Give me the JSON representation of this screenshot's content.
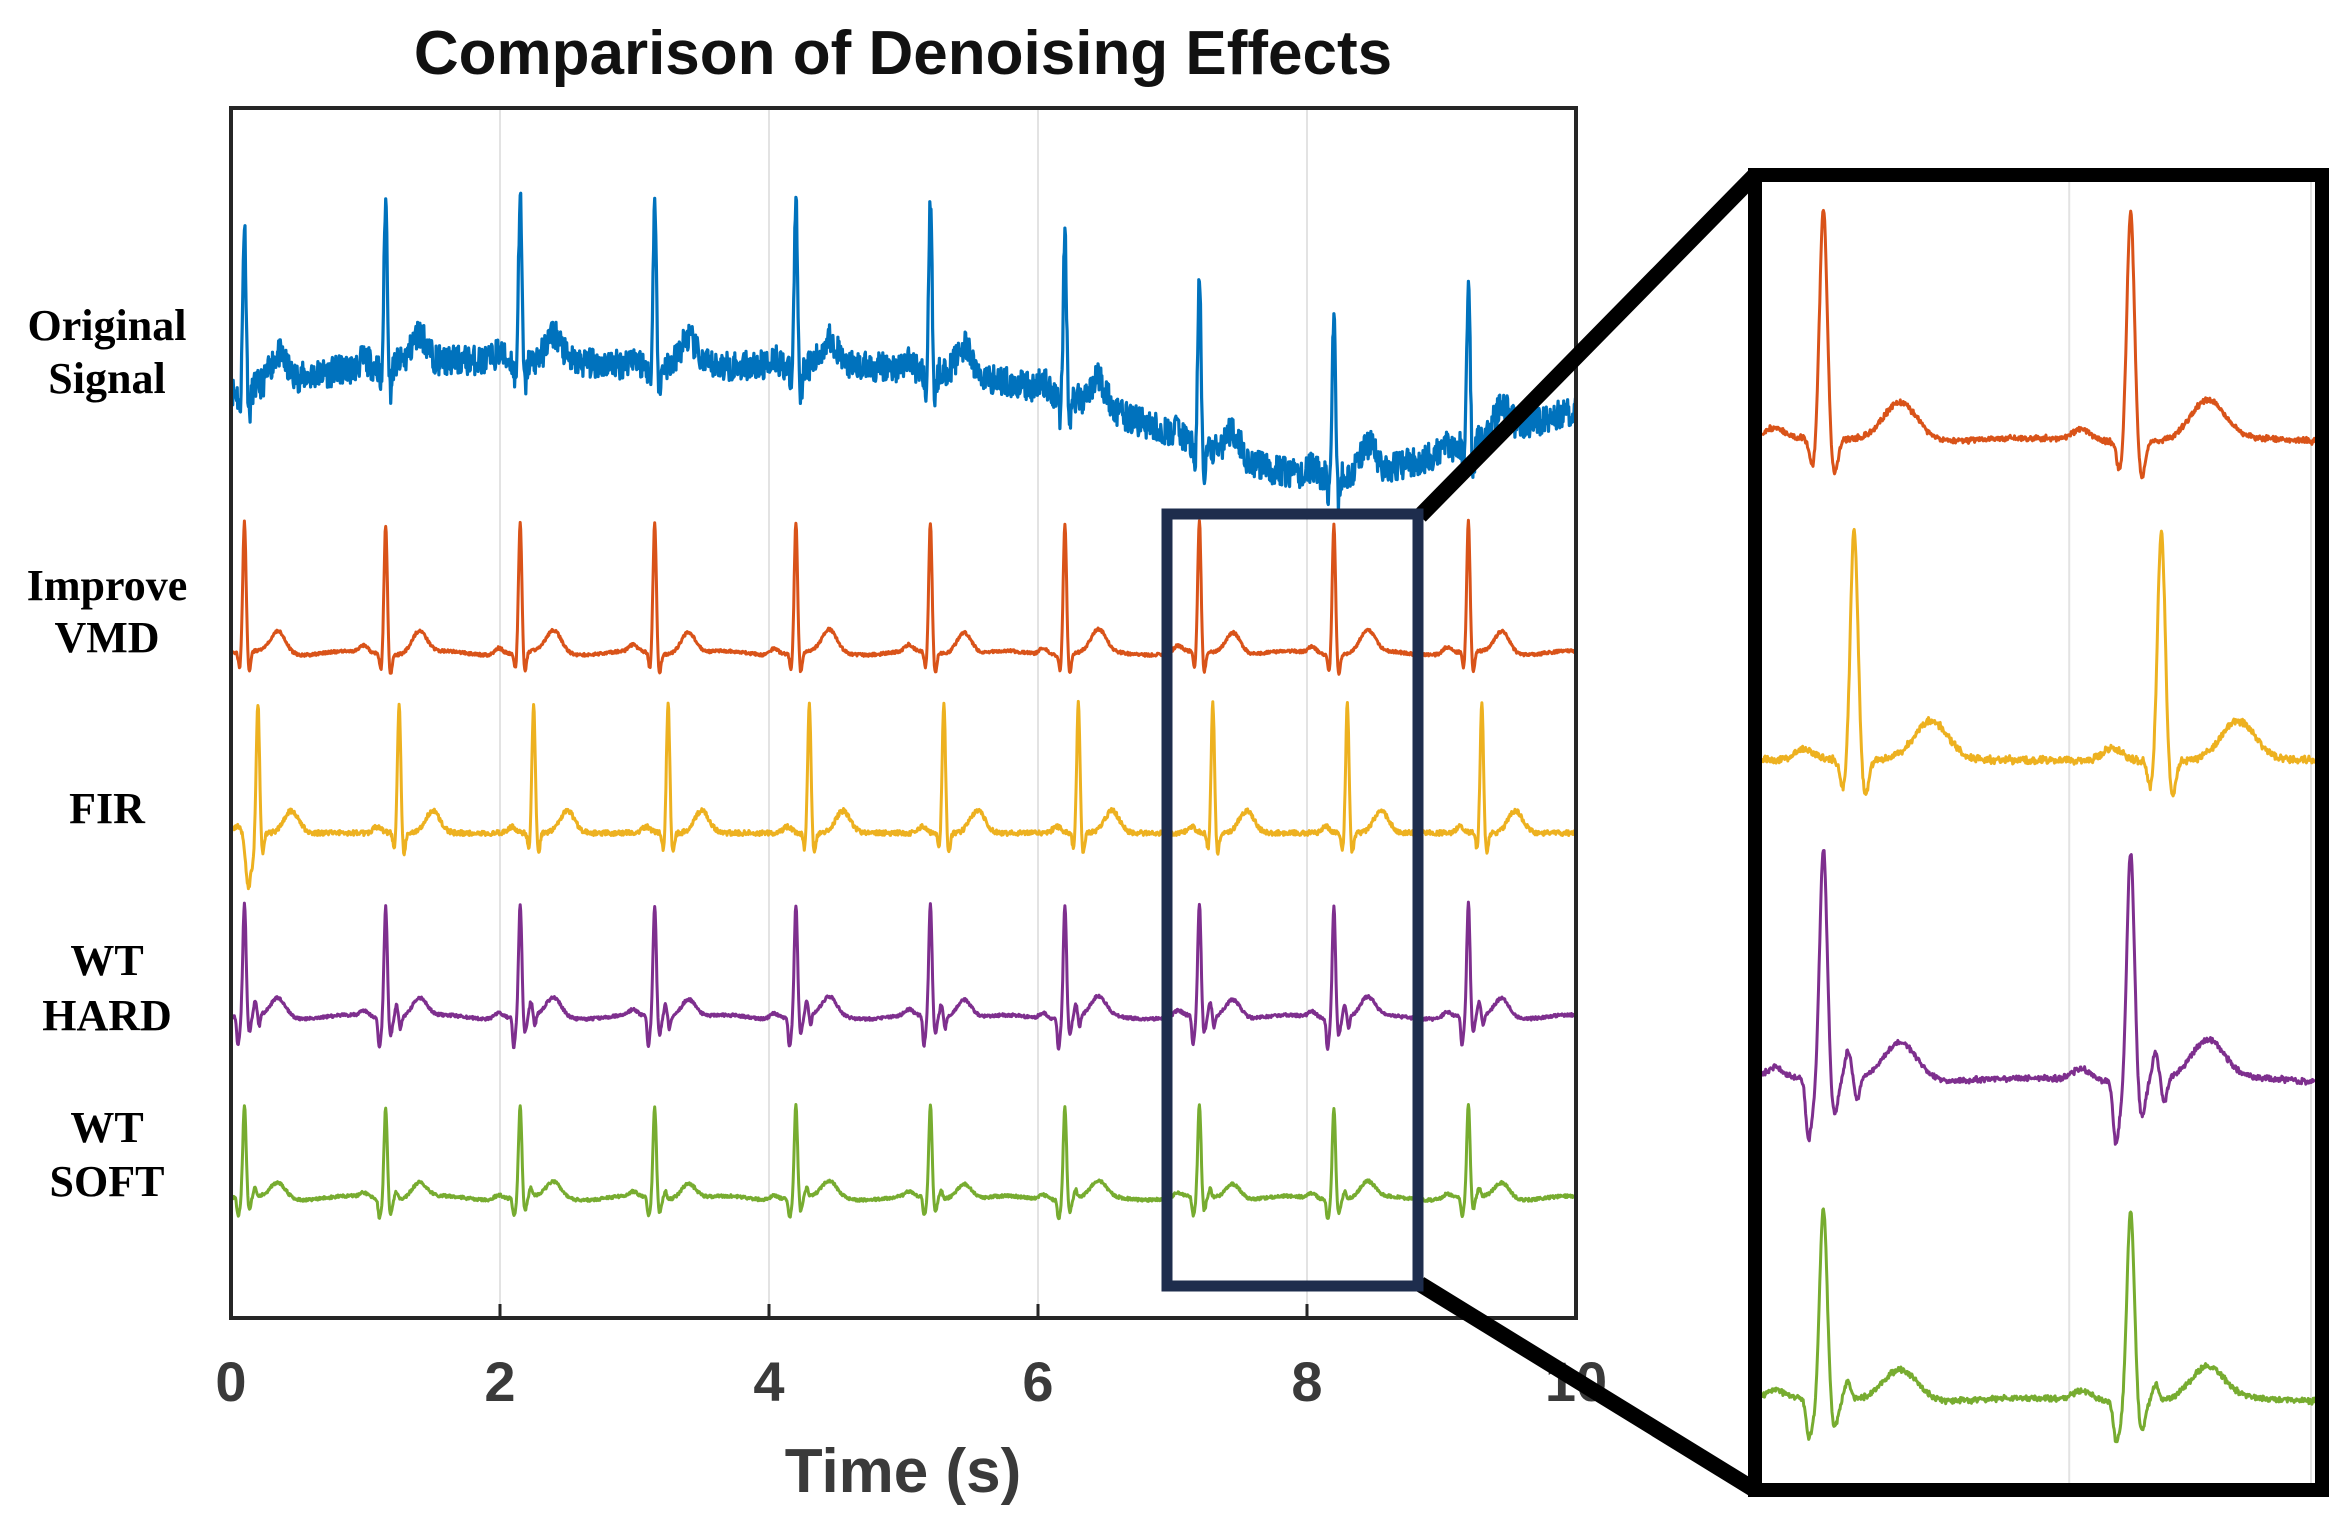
{
  "chart_data": {
    "type": "line",
    "title": "Comparison of Denoising Effects",
    "xlabel": "Time (s)",
    "ylabel": "",
    "xlim": [
      0,
      10
    ],
    "xticks": [
      0,
      2,
      4,
      6,
      8,
      10
    ],
    "grid": "vertical",
    "beats": [
      0.1,
      1.15,
      2.15,
      3.15,
      4.2,
      5.2,
      6.2,
      7.2,
      8.2,
      9.2
    ],
    "series": [
      {
        "name": "Original Signal",
        "label_lines": [
          "Original",
          "Signal"
        ],
        "color": "#0072BD",
        "style": "noisy-baseline-wander"
      },
      {
        "name": "Improve VMD",
        "label_lines": [
          "Improve",
          "VMD"
        ],
        "color": "#D95319",
        "style": "clean"
      },
      {
        "name": "FIR",
        "label_lines": [
          "FIR"
        ],
        "color": "#EDB120",
        "style": "delayed-light-noise"
      },
      {
        "name": "WT HARD",
        "label_lines": [
          "WT",
          "HARD"
        ],
        "color": "#7E2F8E",
        "style": "wavelet-hard"
      },
      {
        "name": "WT SOFT",
        "label_lines": [
          "WT",
          "SOFT"
        ],
        "color": "#77AC30",
        "style": "wavelet-soft"
      }
    ],
    "zoom": {
      "xrange": [
        7,
        8.8
      ],
      "series": [
        "Improve VMD",
        "FIR",
        "WT HARD",
        "WT SOFT"
      ]
    }
  }
}
